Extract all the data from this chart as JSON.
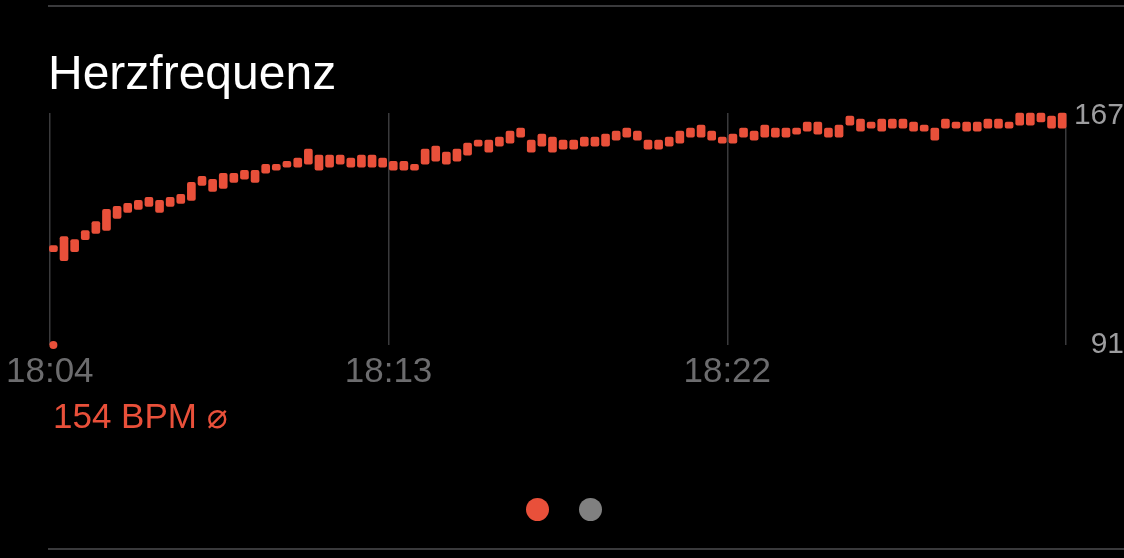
{
  "chart_data": {
    "type": "bar",
    "title": "Herzfrequenz",
    "annotations": [
      "154 BPM ⌀"
    ],
    "xlim": [
      18.0667,
      18.5167
    ],
    "xticks": [
      {
        "value": 18.0667,
        "label": "18:04"
      },
      {
        "value": 18.2167,
        "label": "18:13"
      },
      {
        "value": 18.3667,
        "label": "18:22"
      },
      {
        "value": 18.5167,
        "label": null
      }
    ],
    "ylim": [
      91,
      168
    ],
    "yticks": [
      91,
      167
    ],
    "grid": "x",
    "series": [
      {
        "color": "#e9503a",
        "x": [
          18.0683,
          18.073,
          18.0777,
          18.0824,
          18.0871,
          18.0918,
          18.0965,
          18.1012,
          18.1059,
          18.1106,
          18.1153,
          18.12,
          18.1247,
          18.1294,
          18.1341,
          18.1388,
          18.1435,
          18.1482,
          18.1529,
          18.1576,
          18.1623,
          18.167,
          18.1717,
          18.1765,
          18.1812,
          18.1859,
          18.1906,
          18.1953,
          18.2,
          18.2047,
          18.2094,
          18.2141,
          18.2188,
          18.2235,
          18.2282,
          18.2329,
          18.2376,
          18.2423,
          18.247,
          18.2517,
          18.2564,
          18.2611,
          18.2658,
          18.2705,
          18.2752,
          18.2799,
          18.2846,
          18.2893,
          18.294,
          18.2987,
          18.3034,
          18.3081,
          18.3128,
          18.3175,
          18.3222,
          18.3269,
          18.3316,
          18.3363,
          18.341,
          18.3457,
          18.3504,
          18.3551,
          18.3598,
          18.3645,
          18.3692,
          18.3739,
          18.3786,
          18.3833,
          18.388,
          18.3927,
          18.3974,
          18.4021,
          18.4068,
          18.4115,
          18.4162,
          18.421,
          18.4257,
          18.4304,
          18.4351,
          18.4398,
          18.4445,
          18.4492,
          18.4539,
          18.4586,
          18.4633,
          18.468,
          18.4727,
          18.4774,
          18.4821,
          18.4868,
          18.4915,
          18.4962,
          18.5009,
          18.5056,
          18.5103,
          18.515
        ],
        "base": [
          122,
          119,
          122,
          126,
          128,
          129,
          133,
          135,
          136,
          137,
          135,
          137,
          138,
          139,
          144,
          142,
          143,
          145,
          146,
          145,
          148,
          149,
          150,
          150,
          151,
          149,
          150,
          151,
          150,
          150,
          150,
          150,
          149,
          149,
          149,
          151,
          152,
          151,
          152,
          154,
          157,
          155,
          157,
          158,
          160,
          155,
          157,
          155,
          156,
          156,
          157,
          157,
          157,
          159,
          160,
          159,
          156,
          156,
          157,
          158,
          160,
          160,
          159,
          158,
          158,
          160,
          159,
          160,
          160,
          160,
          161,
          162,
          161,
          160,
          160,
          164,
          162,
          163,
          162,
          163,
          163,
          162,
          162,
          159,
          163,
          163,
          162,
          162,
          163,
          163,
          163,
          164,
          164,
          165,
          163,
          163
        ],
        "values": [
          2,
          8,
          4,
          3,
          4,
          7,
          4,
          3,
          3,
          3,
          4,
          3,
          3,
          6,
          3,
          4,
          5,
          3,
          3,
          4,
          3,
          2,
          2,
          3,
          5,
          5,
          4,
          3,
          3,
          4,
          4,
          3,
          3,
          3,
          2,
          5,
          5,
          4,
          4,
          4,
          2,
          4,
          3,
          4,
          3,
          4,
          4,
          5,
          3,
          3,
          3,
          3,
          4,
          3,
          3,
          3,
          3,
          3,
          3,
          4,
          3,
          4,
          3,
          2,
          3,
          3,
          3,
          4,
          3,
          3,
          2,
          3,
          4,
          3,
          4,
          3,
          4,
          2,
          4,
          3,
          3,
          3,
          2,
          4,
          3,
          2,
          3,
          3,
          3,
          3,
          2,
          4,
          4,
          3,
          4,
          5
        ]
      },
      {
        "type": "scatter",
        "marker": "circle",
        "color": "#e9503a",
        "x": [
          18.0683
        ],
        "values": [
          91
        ]
      }
    ]
  }
}
